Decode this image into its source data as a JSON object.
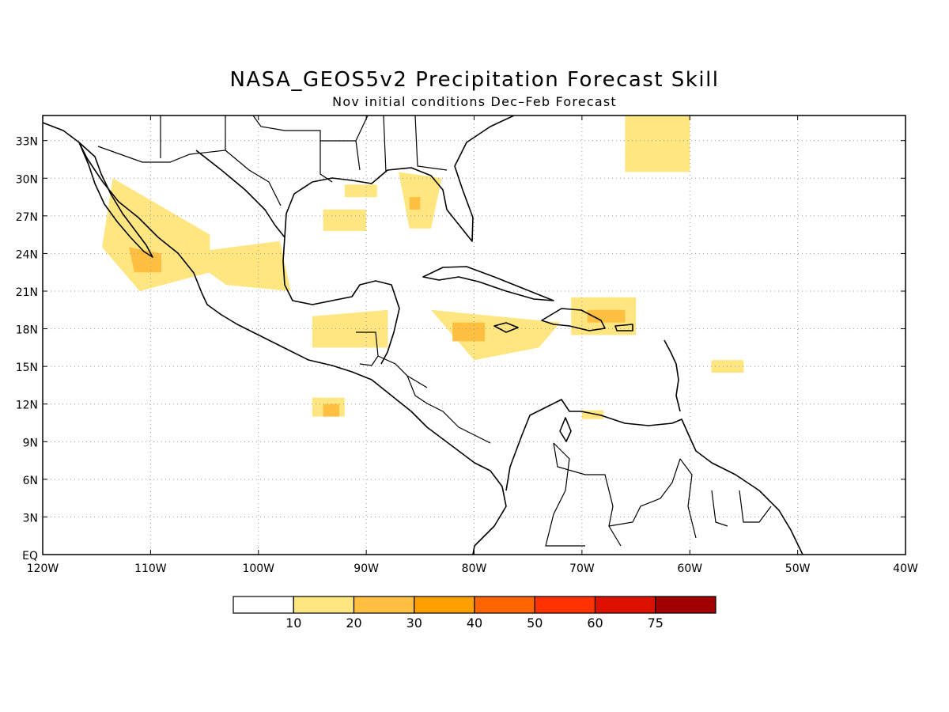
{
  "title": "NASA_GEOS5v2 Precipitation Forecast Skill",
  "subtitle": "Nov initial conditions  Dec–Feb Forecast",
  "map": {
    "lon_range": [
      -120,
      -40
    ],
    "lat_range": [
      0,
      35
    ],
    "grid": "dotted",
    "x_ticks": [
      "120W",
      "110W",
      "100W",
      "90W",
      "80W",
      "70W",
      "60W",
      "50W",
      "40W"
    ],
    "y_ticks": [
      "EQ",
      "3N",
      "6N",
      "9N",
      "12N",
      "15N",
      "18N",
      "21N",
      "24N",
      "27N",
      "30N",
      "33N"
    ]
  },
  "colorbar": {
    "labels": [
      "10",
      "20",
      "30",
      "40",
      "50",
      "60",
      "75"
    ],
    "colors": [
      "#ffffff",
      "#ffe680",
      "#ffbf40",
      "#ff9f00",
      "#ff6600",
      "#ff3300",
      "#dd1100",
      "#a00000"
    ]
  },
  "skill_regions": [
    {
      "level": 1,
      "lon": [
        -113.5,
        -104.5,
        -104.5,
        -111,
        -114.5,
        -113.5
      ],
      "lat": [
        30,
        25.5,
        22.5,
        21,
        24.5,
        30
      ]
    },
    {
      "level": 2,
      "lon": [
        -112,
        -109,
        -109,
        -111.5,
        -112
      ],
      "lat": [
        24.5,
        24,
        22.5,
        22.5,
        24.5
      ]
    },
    {
      "level": 1,
      "lon": [
        -107,
        -98,
        -97,
        -103,
        -107
      ],
      "lat": [
        24,
        25,
        21,
        21.5,
        24
      ]
    },
    {
      "level": 1,
      "lon": [
        -95,
        -88,
        -88,
        -95,
        -95
      ],
      "lat": [
        19,
        19.5,
        16.5,
        16.5,
        19
      ]
    },
    {
      "level": 1,
      "lon": [
        -92,
        -89,
        -89,
        -92,
        -92
      ],
      "lat": [
        29.5,
        29.5,
        28.5,
        28.5,
        29.5
      ]
    },
    {
      "level": 1,
      "lon": [
        -94,
        -90,
        -90,
        -94,
        -94
      ],
      "lat": [
        27.5,
        27.5,
        25.8,
        25.8,
        27.5
      ]
    },
    {
      "level": 1,
      "lon": [
        -87,
        -83,
        -84,
        -86,
        -87
      ],
      "lat": [
        30.5,
        30,
        26,
        26,
        30.5
      ]
    },
    {
      "level": 2,
      "lon": [
        -86,
        -85,
        -85,
        -86,
        -86
      ],
      "lat": [
        28.5,
        28.5,
        27.5,
        27.5,
        28.5
      ]
    },
    {
      "level": 1,
      "lon": [
        -84,
        -72,
        -74,
        -80,
        -84
      ],
      "lat": [
        19.5,
        18.5,
        16.5,
        15.5,
        19.5
      ]
    },
    {
      "level": 2,
      "lon": [
        -82,
        -79,
        -79,
        -82,
        -82
      ],
      "lat": [
        18.5,
        18.5,
        17,
        17,
        18.5
      ]
    },
    {
      "level": 1,
      "lon": [
        -71,
        -65,
        -65,
        -71,
        -71
      ],
      "lat": [
        20.5,
        20.5,
        17.5,
        17.5,
        20.5
      ]
    },
    {
      "level": 2,
      "lon": [
        -69.5,
        -66,
        -66,
        -69.5,
        -69.5
      ],
      "lat": [
        19.5,
        19.5,
        18.5,
        18.5,
        19.5
      ]
    },
    {
      "level": 1,
      "lon": [
        -95,
        -92,
        -92,
        -95,
        -95
      ],
      "lat": [
        12.5,
        12.5,
        11,
        11,
        12.5
      ]
    },
    {
      "level": 2,
      "lon": [
        -94,
        -92.5,
        -92.5,
        -94,
        -94
      ],
      "lat": [
        12,
        12,
        11,
        11,
        12
      ]
    },
    {
      "level": 1,
      "lon": [
        -66,
        -60,
        -60,
        -66,
        -66
      ],
      "lat": [
        35,
        35,
        30.5,
        30.5,
        35
      ]
    },
    {
      "level": 1,
      "lon": [
        -58,
        -55,
        -55,
        -58,
        -58
      ],
      "lat": [
        15.5,
        15.5,
        14.5,
        14.5,
        15.5
      ]
    },
    {
      "level": 1,
      "lon": [
        -70,
        -68,
        -68,
        -70,
        -70
      ],
      "lat": [
        11.5,
        11.5,
        10.8,
        10.8,
        11.5
      ]
    }
  ]
}
